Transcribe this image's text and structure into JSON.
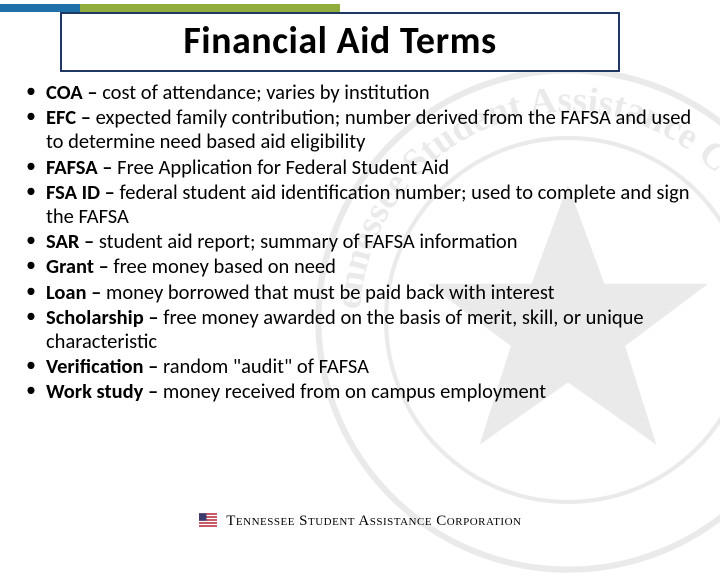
{
  "colors": {
    "accent_blue": "#1f6fa8",
    "accent_green": "#8fae3e",
    "title_border": "#203864",
    "text": "#000000",
    "background": "#ffffff",
    "watermark_opacity": 0.08
  },
  "title": "Financial Aid Terms",
  "bullets": [
    {
      "term": "COA",
      "definition": "cost of attendance; varies by institution"
    },
    {
      "term": "EFC",
      "definition": "expected family contribution; number derived from the FAFSA and used to determine need based aid eligibility"
    },
    {
      "term": "FAFSA",
      "definition": "Free Application for Federal Student Aid"
    },
    {
      "term": "FSA ID",
      "definition": "federal student aid identification number; used to complete and sign the FAFSA"
    },
    {
      "term": "SAR",
      "definition": "student aid report; summary of FAFSA information"
    },
    {
      "term": "Grant",
      "definition": "free money based on need"
    },
    {
      "term": "Loan",
      "definition": "money borrowed that must be paid back with interest"
    },
    {
      "term": "Scholarship",
      "definition": "free money awarded on the basis of merit, skill, or unique characteristic"
    },
    {
      "term": "Verification",
      "definition": "random \"audit\" of FAFSA"
    },
    {
      "term": "Work study",
      "definition": "money received from on campus employment"
    }
  ],
  "footer": {
    "text": "Tennessee Student Assistance Corporation",
    "icon_name": "flag-icon",
    "icon_colors": {
      "red": "#b22234",
      "blue": "#3c3b6e",
      "white": "#ffffff"
    }
  }
}
